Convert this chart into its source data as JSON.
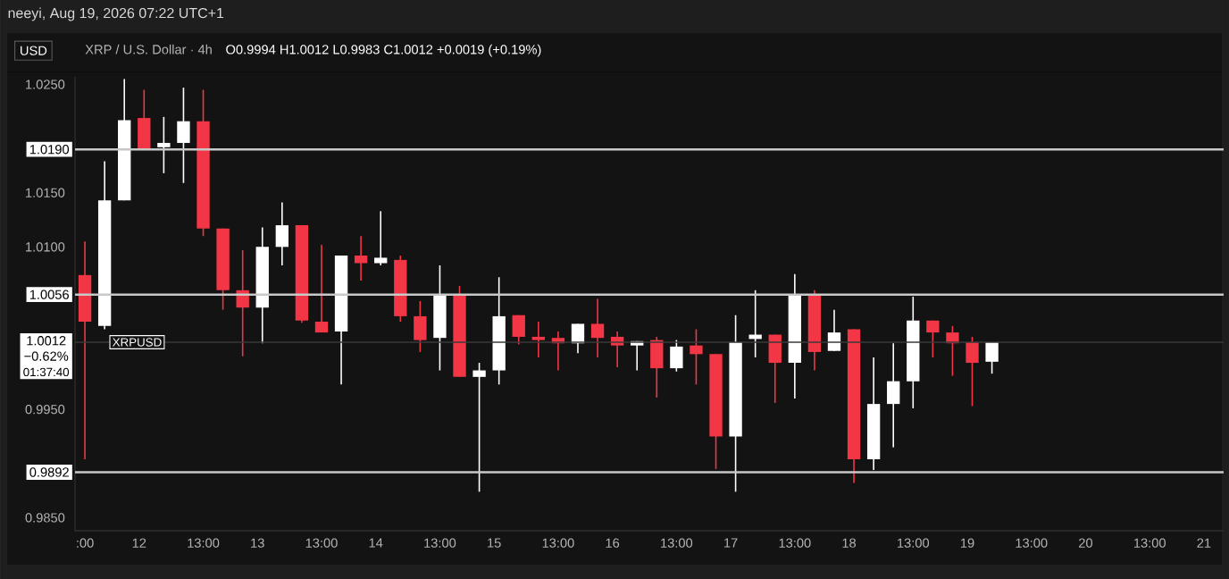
{
  "chart_data": {
    "type": "candlestick",
    "title": "XRP / U.S. Dollar · 4h",
    "subtitle": "O0.9994 H1.0012 L0.9983 C1.0012 +0.0019 (+0.19%)",
    "ylabel": "USD",
    "annotations": [
      "neeyi, Aug 19, 2026 07:22 UTC+1",
      "−0.62%",
      "01:37:40",
      "XRPUSD"
    ],
    "x": [
      "2026-08-11T13:00",
      "2026-08-11T17:00",
      "2026-08-11T21:00",
      "2026-08-12T01:00",
      "2026-08-12T05:00",
      "2026-08-12T09:00",
      "2026-08-12T13:00",
      "2026-08-12T17:00",
      "2026-08-12T21:00",
      "2026-08-13T01:00",
      "2026-08-13T05:00",
      "2026-08-13T09:00",
      "2026-08-13T13:00",
      "2026-08-13T17:00",
      "2026-08-13T21:00",
      "2026-08-14T01:00",
      "2026-08-14T05:00",
      "2026-08-14T09:00",
      "2026-08-14T13:00",
      "2026-08-14T17:00",
      "2026-08-14T21:00",
      "2026-08-15T01:00",
      "2026-08-15T05:00",
      "2026-08-15T09:00",
      "2026-08-15T13:00",
      "2026-08-15T17:00",
      "2026-08-15T21:00",
      "2026-08-16T01:00",
      "2026-08-16T05:00",
      "2026-08-16T09:00",
      "2026-08-16T13:00",
      "2026-08-16T17:00",
      "2026-08-16T21:00",
      "2026-08-17T01:00",
      "2026-08-17T05:00",
      "2026-08-17T09:00",
      "2026-08-17T13:00",
      "2026-08-17T17:00",
      "2026-08-17T21:00",
      "2026-08-18T01:00",
      "2026-08-18T05:00",
      "2026-08-18T09:00",
      "2026-08-18T13:00",
      "2026-08-18T17:00",
      "2026-08-18T21:00",
      "2026-08-19T01:00",
      "2026-08-19T05:00"
    ],
    "ohlc": [
      [
        1.0074,
        1.0105,
        0.9904,
        1.0031
      ],
      [
        1.0027,
        1.0179,
        1.0024,
        1.0143
      ],
      [
        1.0143,
        1.0255,
        1.0143,
        1.0217
      ],
      [
        1.0219,
        1.0245,
        1.0191,
        1.0191
      ],
      [
        1.0192,
        1.022,
        1.0168,
        1.0196
      ],
      [
        1.0196,
        1.0247,
        1.0159,
        1.0216
      ],
      [
        1.0216,
        1.0245,
        1.011,
        1.0117
      ],
      [
        1.0117,
        1.0117,
        1.0042,
        1.006
      ],
      [
        1.006,
        1.0097,
        0.9999,
        1.0044
      ],
      [
        1.0044,
        1.0118,
        1.0011,
        1.01
      ],
      [
        1.01,
        1.0141,
        1.0083,
        1.012
      ],
      [
        1.012,
        1.012,
        1.003,
        1.0032
      ],
      [
        1.0031,
        1.0102,
        1.0021,
        1.0021
      ],
      [
        1.0022,
        1.0092,
        0.9973,
        1.0092
      ],
      [
        1.0092,
        1.011,
        1.0069,
        1.0085
      ],
      [
        1.0085,
        1.0133,
        1.0083,
        1.009
      ],
      [
        1.0088,
        1.0092,
        1.0031,
        1.0036
      ],
      [
        1.0036,
        1.005,
        1.0003,
        1.0014
      ],
      [
        1.0016,
        1.0083,
        0.9986,
        1.0055
      ],
      [
        1.0055,
        1.0064,
        0.998,
        0.998
      ],
      [
        0.998,
        0.9993,
        0.9874,
        0.9986
      ],
      [
        0.9986,
        1.0072,
        0.9973,
        1.0036
      ],
      [
        1.0037,
        1.0037,
        1.001,
        1.0017
      ],
      [
        1.0017,
        1.0031,
        0.9998,
        1.0014
      ],
      [
        1.0016,
        1.0022,
        0.9986,
        1.0011
      ],
      [
        1.0011,
        1.0029,
        1.0002,
        1.0029
      ],
      [
        1.0029,
        1.0052,
        0.9998,
        1.0016
      ],
      [
        1.0017,
        1.0022,
        0.9989,
        1.0009
      ],
      [
        1.0009,
        1.0013,
        0.9986,
        1.0013
      ],
      [
        1.0014,
        1.0017,
        0.9961,
        0.9988
      ],
      [
        0.9988,
        1.0014,
        0.9985,
        1.0008
      ],
      [
        1.0009,
        1.0024,
        0.9973,
        1.0001
      ],
      [
        1.0001,
        1.0001,
        0.9895,
        0.9925
      ],
      [
        0.9925,
        1.0037,
        0.9874,
        1.0012
      ],
      [
        1.0015,
        1.006,
        0.9998,
        1.0019
      ],
      [
        1.0019,
        1.0019,
        0.9956,
        0.9993
      ],
      [
        0.9993,
        1.0075,
        0.996,
        1.0055
      ],
      [
        1.0055,
        1.006,
        0.9986,
        1.0003
      ],
      [
        1.0004,
        1.0042,
        1.0004,
        1.0021
      ],
      [
        1.0024,
        1.0024,
        0.9882,
        0.9904
      ],
      [
        0.9904,
        0.9998,
        0.9894,
        0.9955
      ],
      [
        0.9955,
        1.0011,
        0.9915,
        0.9976
      ],
      [
        0.9976,
        1.0054,
        0.9951,
        1.0032
      ],
      [
        1.0032,
        1.0032,
        0.9998,
        1.0021
      ],
      [
        1.0021,
        1.0027,
        0.9981,
        1.0011
      ],
      [
        1.0012,
        1.0017,
        0.9953,
        0.9993
      ],
      [
        0.9994,
        1.0012,
        0.9983,
        1.0012
      ]
    ],
    "colors": [
      "#f23645",
      "#ffffff",
      "#ffffff",
      "#f23645",
      "#ffffff",
      "#ffffff",
      "#f23645",
      "#f23645",
      "#f23645",
      "#ffffff",
      "#ffffff",
      "#f23645",
      "#f23645",
      "#ffffff",
      "#f23645",
      "#ffffff",
      "#f23645",
      "#f23645",
      "#ffffff",
      "#f23645",
      "#ffffff",
      "#ffffff",
      "#f23645",
      "#f23645",
      "#f23645",
      "#ffffff",
      "#f23645",
      "#f23645",
      "#ffffff",
      "#f23645",
      "#ffffff",
      "#f23645",
      "#f23645",
      "#ffffff",
      "#ffffff",
      "#f23645",
      "#ffffff",
      "#f23645",
      "#ffffff",
      "#f23645",
      "#ffffff",
      "#ffffff",
      "#ffffff",
      "#f23645",
      "#f23645",
      "#f23645",
      "#ffffff"
    ],
    "xlim": [
      "2026-08-11T11:00",
      "2026-08-21T04:00"
    ],
    "xticks": [
      {
        "value": "2026-08-11T13:00",
        "label": ":00"
      },
      {
        "value": "2026-08-12T00:00",
        "label": "12"
      },
      {
        "value": "2026-08-12T13:00",
        "label": "13:00"
      },
      {
        "value": "2026-08-13T00:00",
        "label": "13"
      },
      {
        "value": "2026-08-13T13:00",
        "label": "13:00"
      },
      {
        "value": "2026-08-14T00:00",
        "label": "14"
      },
      {
        "value": "2026-08-14T13:00",
        "label": "13:00"
      },
      {
        "value": "2026-08-15T00:00",
        "label": "15"
      },
      {
        "value": "2026-08-15T13:00",
        "label": "13:00"
      },
      {
        "value": "2026-08-16T00:00",
        "label": "16"
      },
      {
        "value": "2026-08-16T13:00",
        "label": "13:00"
      },
      {
        "value": "2026-08-17T00:00",
        "label": "17"
      },
      {
        "value": "2026-08-17T13:00",
        "label": "13:00"
      },
      {
        "value": "2026-08-18T00:00",
        "label": "18"
      },
      {
        "value": "2026-08-18T13:00",
        "label": "13:00"
      },
      {
        "value": "2026-08-19T00:00",
        "label": "19"
      },
      {
        "value": "2026-08-19T13:00",
        "label": "13:00"
      },
      {
        "value": "2026-08-20T00:00",
        "label": "20"
      },
      {
        "value": "2026-08-20T13:00",
        "label": "13:00"
      },
      {
        "value": "2026-08-21T00:00",
        "label": "21"
      }
    ],
    "ylim": [
      0.9838,
      1.0257
    ],
    "yticks": [
      {
        "value": 0.985,
        "label": "0.9850"
      },
      {
        "value": 0.995,
        "label": "0.9950"
      },
      {
        "value": 1.01,
        "label": "1.0100"
      },
      {
        "value": 1.015,
        "label": "1.0150"
      },
      {
        "value": 1.025,
        "label": "1.0250"
      }
    ],
    "ref_lines": [
      {
        "axis": "y",
        "value": 1.019,
        "label": "1.0190",
        "color": "#c8c8c8",
        "line_style": "solid"
      },
      {
        "axis": "y",
        "value": 1.0056,
        "label": "1.0056",
        "color": "#c8c8c8",
        "line_style": "solid"
      },
      {
        "axis": "y",
        "value": 0.9892,
        "label": "0.9892",
        "color": "#c8c8c8",
        "line_style": "solid"
      },
      {
        "axis": "y",
        "value": 1.0012,
        "label": "1.0012",
        "color": "#3a3a3a",
        "line_style": "solid"
      }
    ]
  }
}
